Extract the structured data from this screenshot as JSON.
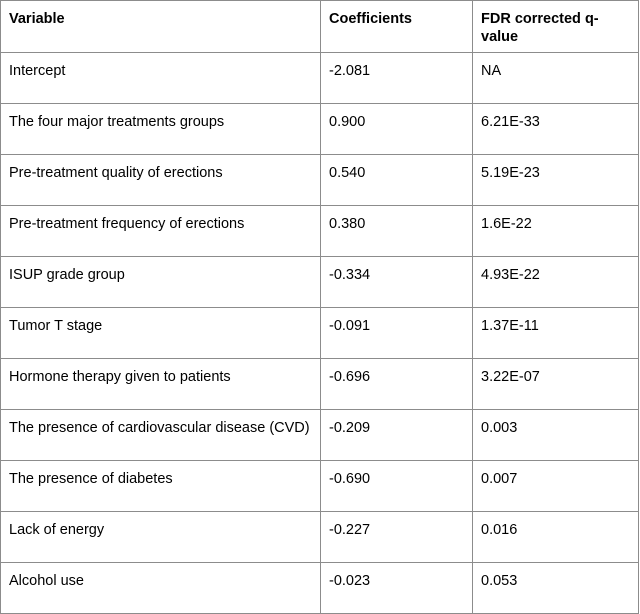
{
  "table": {
    "columns": {
      "variable": "Variable",
      "coefficients": "Coefficients",
      "q_value": "FDR corrected q-value"
    },
    "rows": [
      {
        "variable": "Intercept",
        "coefficient": "-2.081",
        "q_value": "NA"
      },
      {
        "variable": "The four major treatments groups",
        "coefficient": "0.900",
        "q_value": "6.21E-33"
      },
      {
        "variable": "Pre-treatment quality of erections",
        "coefficient": "0.540",
        "q_value": "5.19E-23"
      },
      {
        "variable": "Pre-treatment frequency of erections",
        "coefficient": "0.380",
        "q_value": "1.6E-22"
      },
      {
        "variable": "ISUP grade group",
        "coefficient": "-0.334",
        "q_value": "4.93E-22"
      },
      {
        "variable": "Tumor T stage",
        "coefficient": "-0.091",
        "q_value": "1.37E-11"
      },
      {
        "variable": "Hormone therapy given to patients",
        "coefficient": "-0.696",
        "q_value": "3.22E-07"
      },
      {
        "variable": "The presence of cardiovascular disease (CVD)",
        "coefficient": "-0.209",
        "q_value": "0.003"
      },
      {
        "variable": "The presence of diabetes",
        "coefficient": "-0.690",
        "q_value": "0.007"
      },
      {
        "variable": "Lack of energy",
        "coefficient": "-0.227",
        "q_value": "0.016"
      },
      {
        "variable": "Alcohol use",
        "coefficient": "-0.023",
        "q_value": "0.053"
      }
    ],
    "style": {
      "border_color": "#8c8c8c",
      "text_color": "#000000",
      "background_color": "#ffffff"
    }
  }
}
